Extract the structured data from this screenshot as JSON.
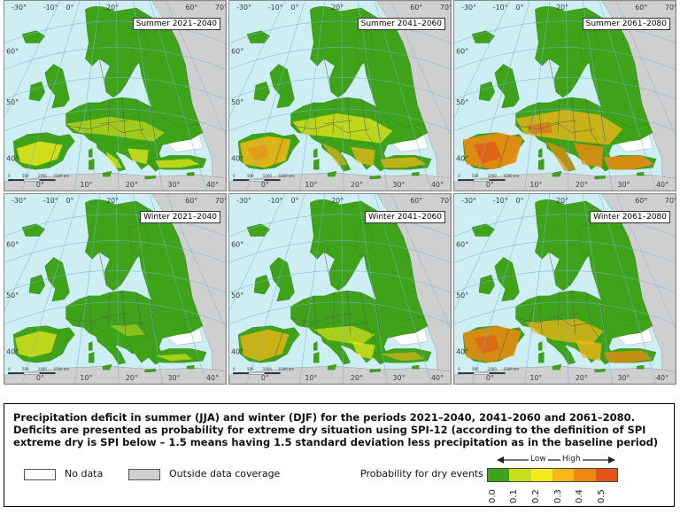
{
  "panels": [
    {
      "label": "Summer 2021–2040",
      "scenario": "s1"
    },
    {
      "label": "Summer 2041–2060",
      "scenario": "s2"
    },
    {
      "label": "Summer 2061–2080",
      "scenario": "s3"
    },
    {
      "label": "Winter 2021–2040",
      "scenario": "w1"
    },
    {
      "label": "Winter 2041–2060",
      "scenario": "w2"
    },
    {
      "label": "Winter 2061–2080",
      "scenario": "w3"
    }
  ],
  "graticule": {
    "top_lon_labels": [
      "-30°",
      "-10°",
      "0°",
      "20°",
      "60°",
      "70°"
    ],
    "left_lat_labels": [
      "60°",
      "50°",
      "40°"
    ],
    "bottom_lon_labels": [
      "0°",
      "10°",
      "20°",
      "30°",
      "40°"
    ],
    "scale_labels": [
      "0",
      "500",
      "1000",
      "1500 km"
    ]
  },
  "legend": {
    "caption": "Precipitation deficit in summer (JJA) and winter (DJF) for the periods 2021–2040, 2041–2060 and 2061–2080. Deficits are presented as probability for extreme dry situation using SPI-12 (according to the definition of SPI extreme dry is SPI below – 1.5 means having 1.5 standard deviation less precipitation as in the baseline period)",
    "no_data": "No data",
    "outside": "Outside data coverage",
    "prob_title": "Probability for dry events",
    "low": "Low",
    "high": "High",
    "ticks": [
      "0.0",
      "0.1",
      "0.2",
      "0.3",
      "0.4",
      "0.5"
    ],
    "colors": [
      "#3fa31a",
      "#c8dc1e",
      "#f2ec1a",
      "#f7b717",
      "#ee8a12",
      "#e2541a"
    ],
    "no_data_color": "#ffffff",
    "outside_color": "#cfcfcf"
  }
}
